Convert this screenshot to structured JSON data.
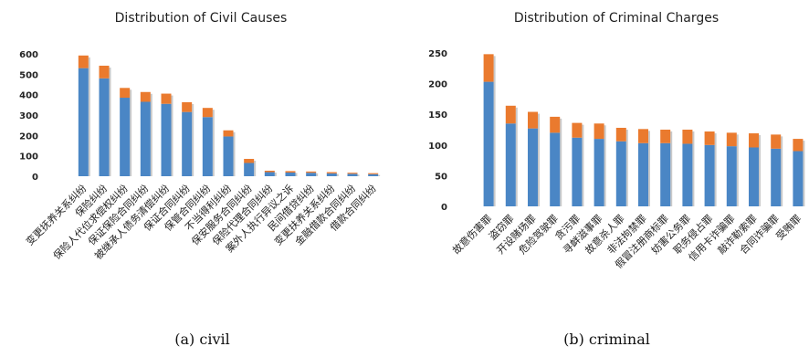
{
  "captions": {
    "a": "(a)  civil",
    "b": "(b)  criminal"
  },
  "colors": {
    "base": "#4a86c5",
    "top": "#ea7a2e"
  },
  "chart_data": [
    {
      "type": "bar",
      "stacked": true,
      "title": "Distribution of Civil Causes",
      "ylim": [
        0,
        600
      ],
      "yticks": [
        0,
        100,
        200,
        300,
        400,
        500,
        600
      ],
      "grid": false,
      "categories": [
        "变更抚养关系纠纷",
        "保险纠纷",
        "保险人代位求偿权纠纷",
        "保证保险合同纠纷",
        "被继承人债务清偿纠纷",
        "保证合同纠纷",
        "保管合同纠纷",
        "不当得利纠纷",
        "保安服务合同纠纷",
        "保险代理合同纠纷",
        "案外人执行异议之诉",
        "民间借贷纠纷",
        "变更扶养关系纠纷",
        "金融借款合同纠纷",
        "借款合同纠纷"
      ],
      "series": [
        {
          "values": [
            530,
            480,
            385,
            365,
            355,
            315,
            290,
            195,
            65,
            20,
            18,
            17,
            14,
            12,
            10
          ]
        },
        {
          "values": [
            62,
            62,
            48,
            48,
            50,
            48,
            45,
            30,
            20,
            7,
            7,
            6,
            6,
            5,
            5
          ]
        }
      ]
    },
    {
      "type": "bar",
      "stacked": true,
      "title": "Distribution of Criminal Charges",
      "ylim": [
        0,
        250
      ],
      "yticks": [
        0,
        50,
        100,
        150,
        200,
        250
      ],
      "grid": false,
      "categories": [
        "故意伤害罪",
        "盗窃罪",
        "开设赌场罪",
        "危险驾驶罪",
        "贪污罪",
        "寻衅滋事罪",
        "故意杀人罪",
        "非法拘禁罪",
        "假冒注册商标罪",
        "妨害公务罪",
        "职务侵占罪",
        "信用卡诈骗罪",
        "敲诈勒索罪",
        "合同诈骗罪",
        "受贿罪"
      ],
      "series": [
        {
          "values": [
            203,
            135,
            127,
            120,
            112,
            110,
            106,
            103,
            103,
            102,
            100,
            98,
            96,
            94,
            90
          ]
        },
        {
          "values": [
            45,
            29,
            27,
            26,
            24,
            25,
            22,
            23,
            22,
            23,
            22,
            22,
            23,
            23,
            20
          ]
        }
      ]
    }
  ]
}
